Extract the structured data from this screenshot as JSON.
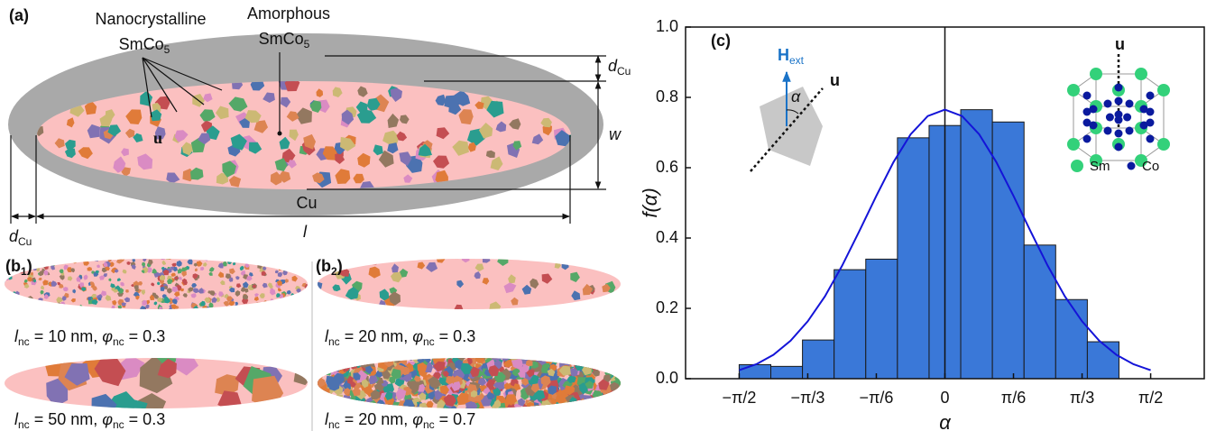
{
  "panel_a": {
    "label": "(a)",
    "nanocrystalline": "Nanocrystalline",
    "nc_formula": "SmCo",
    "nc_sub": "5",
    "amorphous": "Amorphous",
    "am_formula": "SmCo",
    "am_sub": "5",
    "u": "u",
    "d_top": "d",
    "d_top_sub": "Cu",
    "w": "w",
    "cu": "Cu",
    "d_left": "d",
    "d_left_sub": "Cu",
    "l": "l"
  },
  "panel_b": [
    {
      "label": "(b",
      "label_sub": "1",
      "label_end": ")",
      "captions": [
        {
          "l": "l",
          "l_sub": "nc",
          "mid": " = 10 nm, ",
          "phi": "φ",
          "phi_sub": "nc",
          "end": " = 0.3"
        },
        {
          "l": "l",
          "l_sub": "nc",
          "mid": " = 50 nm, ",
          "phi": "φ",
          "phi_sub": "nc",
          "end": " = 0.3"
        }
      ]
    },
    {
      "label": "(b",
      "label_sub": "2",
      "label_end": ")",
      "captions": [
        {
          "l": "l",
          "l_sub": "nc",
          "mid": " = 20 nm, ",
          "phi": "φ",
          "phi_sub": "nc",
          "end": " = 0.3"
        },
        {
          "l": "l",
          "l_sub": "nc",
          "mid": " = 20 nm, ",
          "phi": "φ",
          "phi_sub": "nc",
          "end": " = 0.7"
        }
      ]
    }
  ],
  "chart_data": {
    "type": "histogram",
    "panel_label": "(c)",
    "x_label": "α",
    "y_label": "f(α)",
    "bins": [
      -1.5708,
      -1.3291,
      -1.0875,
      -0.8458,
      -0.6042,
      -0.3625,
      -0.1208,
      0.1208,
      0.3625,
      0.6042,
      0.8458,
      1.0875,
      1.3291,
      1.5708
    ],
    "values": [
      0.04,
      0.035,
      0.11,
      0.31,
      0.34,
      0.685,
      0.72,
      0.765,
      0.73,
      0.38,
      0.225,
      0.105,
      0
    ],
    "color": "#3a78d8",
    "edge_color": "#1a1a1a",
    "curve": {
      "color": "#1414d8",
      "x": [
        -1.5708,
        -1.4399,
        -1.309,
        -1.1781,
        -1.0472,
        -0.9163,
        -0.7854,
        -0.6545,
        -0.5236,
        -0.3927,
        -0.2618,
        -0.1309,
        0,
        0.1309,
        0.2618,
        0.3927,
        0.5236,
        0.6545,
        0.7854,
        0.9163,
        1.0472,
        1.1781,
        1.309,
        1.4399,
        1.5708
      ],
      "y": [
        0.024,
        0.041,
        0.068,
        0.108,
        0.163,
        0.234,
        0.321,
        0.419,
        0.52,
        0.616,
        0.695,
        0.747,
        0.765,
        0.747,
        0.695,
        0.616,
        0.52,
        0.419,
        0.321,
        0.234,
        0.163,
        0.108,
        0.068,
        0.041,
        0.024
      ]
    },
    "xlim": [
      -1.98,
      1.98
    ],
    "ylim": [
      0,
      1
    ],
    "xticks": [
      {
        "value": -1.5708,
        "label": "−π/2"
      },
      {
        "value": -1.0472,
        "label": "−π/3"
      },
      {
        "value": -0.5236,
        "label": "−π/6"
      },
      0,
      {
        "value": 0.5236,
        "label": "π/6"
      },
      {
        "value": 1.0472,
        "label": "π/3"
      },
      {
        "value": 1.5708,
        "label": "π/2"
      }
    ],
    "yticks": [
      {
        "value": 0,
        "label": "0.0"
      },
      0.2,
      0.4,
      0.6,
      0.8,
      {
        "value": 1,
        "label": "1.0"
      }
    ],
    "inset": {
      "h": "H",
      "h_sub": "ext",
      "alpha": "α",
      "u": "u",
      "cell_u": "u",
      "sm": "Sm",
      "co": "Co"
    }
  }
}
